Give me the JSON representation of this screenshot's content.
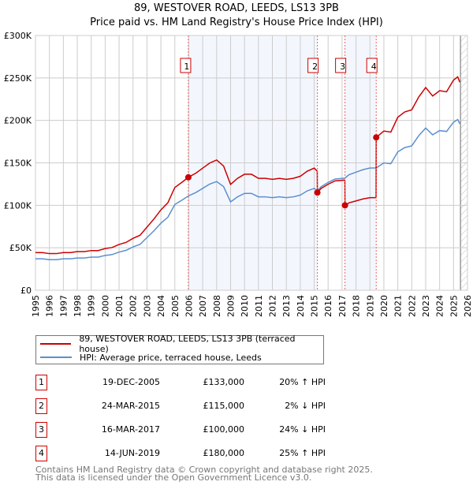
{
  "chart_data": {
    "type": "line",
    "title": "89, WESTOVER ROAD, LEEDS, LS13 3PB",
    "subtitle": "Price paid vs. HM Land Registry's House Price Index (HPI)",
    "xlim": [
      1995,
      2026
    ],
    "ylim": [
      0,
      300000
    ],
    "y_ticks": [
      {
        "v": 0,
        "label": "£0"
      },
      {
        "v": 50000,
        "label": "£50K"
      },
      {
        "v": 100000,
        "label": "£100K"
      },
      {
        "v": 150000,
        "label": "£150K"
      },
      {
        "v": 200000,
        "label": "£200K"
      },
      {
        "v": 250000,
        "label": "£250K"
      },
      {
        "v": 300000,
        "label": "£300K"
      }
    ],
    "x_ticks": [
      "1995",
      "1996",
      "1997",
      "1998",
      "1999",
      "2000",
      "2001",
      "2002",
      "2003",
      "2004",
      "2005",
      "2006",
      "2007",
      "2008",
      "2009",
      "2010",
      "2011",
      "2012",
      "2013",
      "2014",
      "2015",
      "2016",
      "2017",
      "2018",
      "2019",
      "2020",
      "2021",
      "2022",
      "2023",
      "2024",
      "2025",
      "2026"
    ],
    "grid": true,
    "series": [
      {
        "name": "89, WESTOVER ROAD, LEEDS, LS13 3PB (terraced house)",
        "color": "#cc0000",
        "derived_from_sales": true
      },
      {
        "name": "HPI: Average price, terraced house, Leeds",
        "color": "#5b8fd0",
        "x": [
          1995,
          1995.5,
          1996,
          1996.5,
          1997,
          1997.5,
          1998,
          1998.5,
          1999,
          1999.5,
          2000,
          2000.5,
          2001,
          2001.5,
          2002,
          2002.5,
          2003,
          2003.5,
          2004,
          2004.5,
          2005,
          2005.5,
          2005.97,
          2006.5,
          2007,
          2007.5,
          2008,
          2008.5,
          2009,
          2009.5,
          2010,
          2010.5,
          2011,
          2011.5,
          2012,
          2012.5,
          2013,
          2013.5,
          2014,
          2014.5,
          2015.0,
          2015.23,
          2015.5,
          2016,
          2016.5,
          2017.2,
          2017.5,
          2018,
          2018.5,
          2019,
          2019.45,
          2020,
          2020.5,
          2021,
          2021.5,
          2022,
          2022.5,
          2023,
          2023.5,
          2024,
          2024.5,
          2025,
          2025.3,
          2025.45
        ],
        "y": [
          37000,
          37000,
          36000,
          36000,
          37000,
          37000,
          38000,
          38000,
          39000,
          39000,
          41000,
          42000,
          45000,
          47000,
          51000,
          54000,
          62000,
          70000,
          79000,
          86000,
          101000,
          106000,
          111000,
          115000,
          120000,
          125000,
          128000,
          122000,
          104000,
          110000,
          114000,
          114000,
          110000,
          110000,
          109000,
          110000,
          109000,
          110000,
          112000,
          117000,
          120000,
          117000,
          122000,
          127000,
          131000,
          132000,
          136000,
          139000,
          142000,
          144000,
          144000,
          150000,
          149000,
          163000,
          168000,
          170000,
          182000,
          191000,
          183000,
          188000,
          187000,
          198000,
          201000,
          196000
        ]
      }
    ],
    "sales": [
      {
        "n": "1",
        "x": 2005.97,
        "date": "19-DEC-2005",
        "price": 133000,
        "price_label": "£133,000",
        "hpi": "20% ↑ HPI"
      },
      {
        "n": "2",
        "x": 2015.23,
        "date": "24-MAR-2015",
        "price": 115000,
        "price_label": "£115,000",
        "hpi": "2% ↓ HPI"
      },
      {
        "n": "3",
        "x": 2017.21,
        "date": "16-MAR-2017",
        "price": 100000,
        "price_label": "£100,000",
        "hpi": "24% ↓ HPI"
      },
      {
        "n": "4",
        "x": 2019.45,
        "date": "14-JUN-2019",
        "price": 180000,
        "price_label": "£180,000",
        "hpi": "25% ↑ HPI"
      }
    ],
    "forecast_from": 2025.5
  },
  "footer": {
    "line1": "Contains HM Land Registry data © Crown copyright and database right 2025.",
    "line2": "This data is licensed under the Open Government Licence v3.0."
  }
}
